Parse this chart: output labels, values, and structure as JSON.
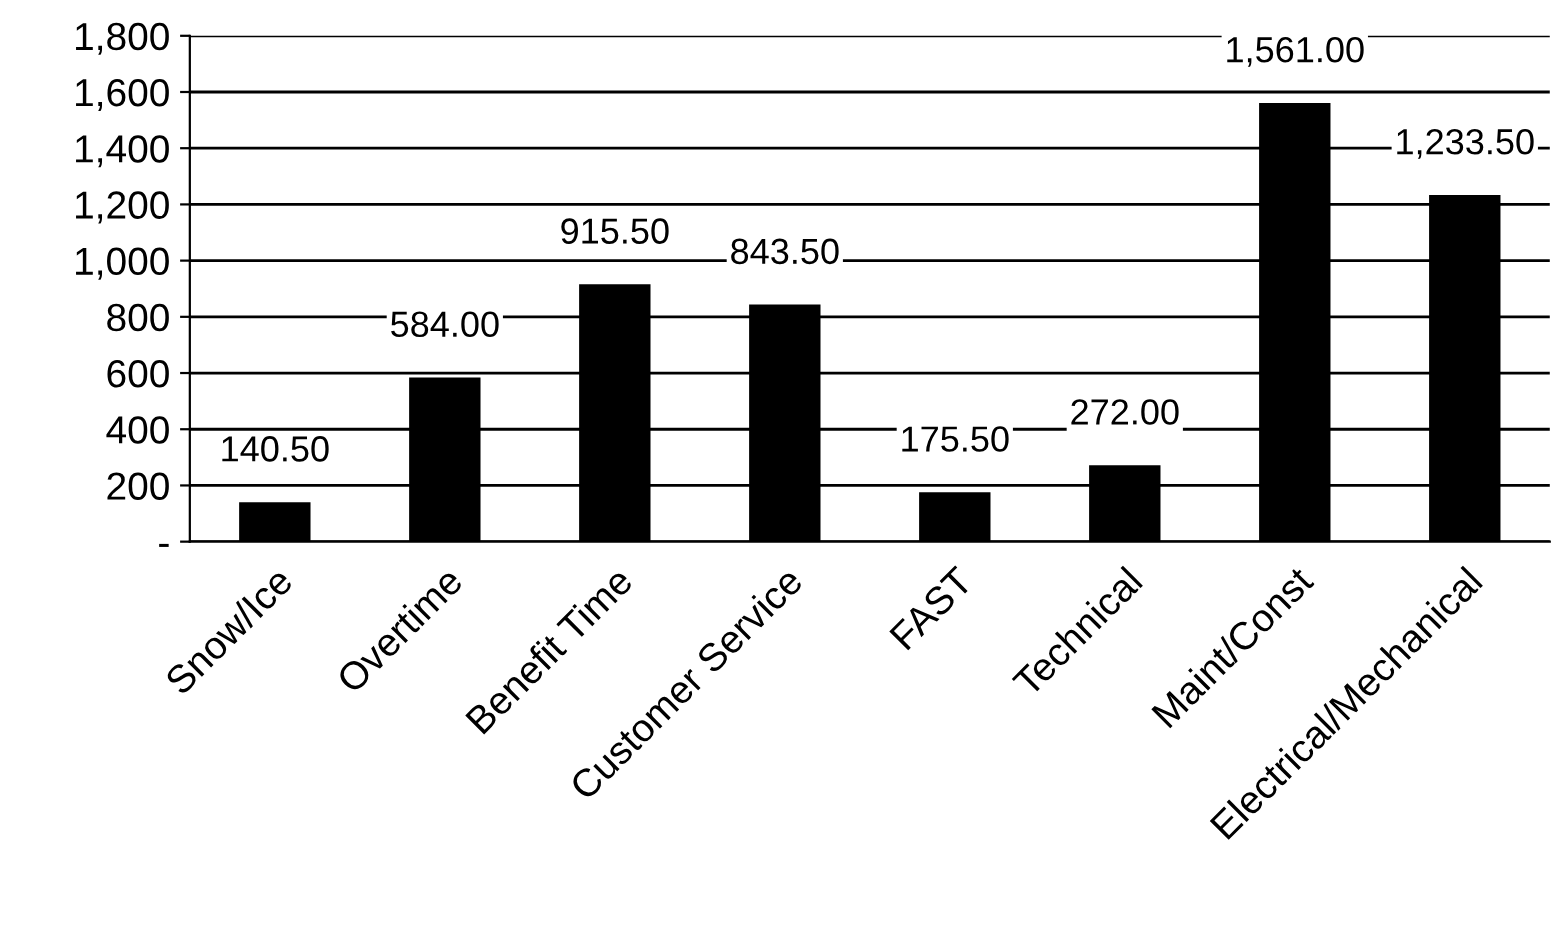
{
  "chart_data": {
    "type": "bar",
    "categories": [
      "Snow/Ice",
      "Overtime",
      "Benefit Time",
      "Customer Service",
      "FAST",
      "Technical",
      "Maint/Const",
      "Electrical/Mechanical"
    ],
    "values": [
      140.5,
      584,
      915.5,
      843.5,
      175.5,
      272,
      1561,
      1233.5
    ],
    "value_labels": [
      "140.50",
      "584.00",
      "915.50",
      "843.50",
      "175.50",
      "272.00",
      "1,561.00",
      "1,233.50"
    ],
    "color": "#000000",
    "ylim": [
      0,
      1800
    ],
    "yticks": [
      {
        "value": 0,
        "label": "-"
      },
      200,
      400,
      600,
      800,
      {
        "value": 1000,
        "label": "1,000"
      },
      {
        "value": 1200,
        "label": "1,200"
      },
      {
        "value": 1400,
        "label": "1,400"
      },
      {
        "value": 1600,
        "label": "1,600"
      },
      {
        "value": 1800,
        "label": "1,800"
      }
    ],
    "grid": "y",
    "legend": false
  }
}
